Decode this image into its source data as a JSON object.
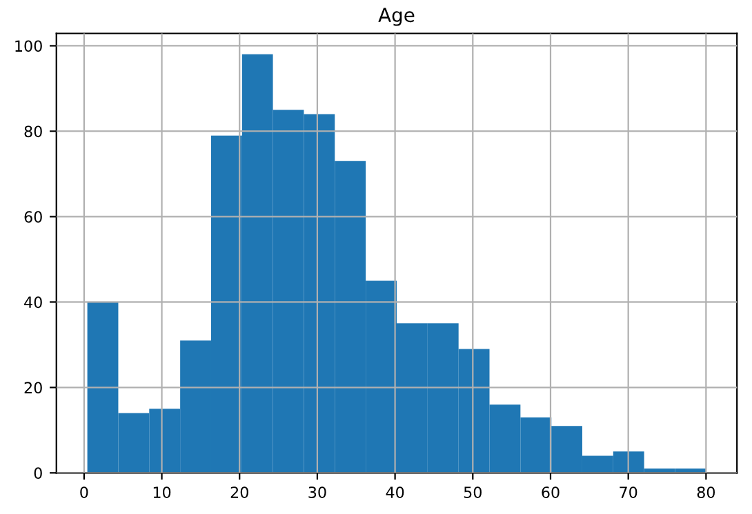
{
  "chart_data": {
    "type": "histogram",
    "title": "Age",
    "bins": [
      0.42,
      4.4,
      8.38,
      12.36,
      16.34,
      20.32,
      24.29,
      28.27,
      32.25,
      36.23,
      40.21,
      44.19,
      48.17,
      52.15,
      56.13,
      60.11,
      64.08,
      68.06,
      72.04,
      76.02,
      80
    ],
    "values": [
      40,
      14,
      15,
      31,
      79,
      98,
      85,
      84,
      73,
      45,
      35,
      35,
      29,
      16,
      13,
      11,
      4,
      5,
      1,
      1
    ],
    "color": "#1f77b4",
    "xlim": [
      -3.56,
      83.98
    ],
    "xticks": [
      0,
      10,
      20,
      30,
      40,
      50,
      60,
      70,
      80
    ],
    "ylim": [
      0,
      102.9
    ],
    "yticks": [
      0,
      20,
      40,
      60,
      80,
      100
    ],
    "grid": true
  }
}
